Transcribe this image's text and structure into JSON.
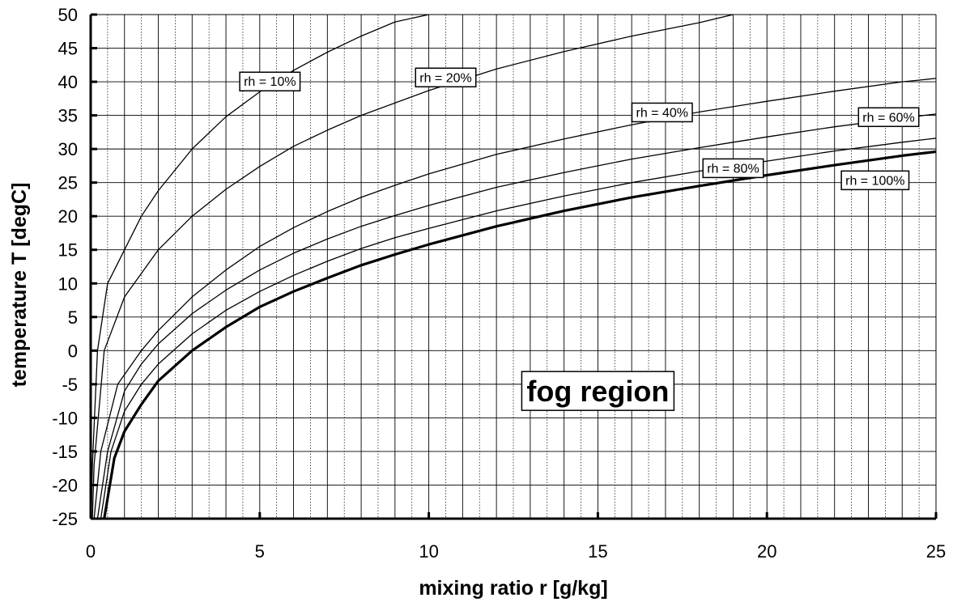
{
  "chart_data": {
    "type": "line",
    "xlabel": "mixing ratio r [g/kg]",
    "ylabel": "temperature T [degC]",
    "xlim": [
      0,
      25
    ],
    "ylim": [
      -25,
      50
    ],
    "x_ticks": [
      0,
      5,
      10,
      15,
      20,
      25
    ],
    "y_ticks": [
      -25,
      -20,
      -15,
      -10,
      -5,
      0,
      5,
      10,
      15,
      20,
      25,
      30,
      35,
      40,
      45,
      50
    ],
    "grid": true,
    "series": [
      {
        "name": "rh = 10%",
        "label_anchor": [
          5.3,
          40.1
        ],
        "points": [
          [
            0.02,
            -25
          ],
          [
            0.05,
            -17
          ],
          [
            0.2,
            0
          ],
          [
            0.5,
            10
          ],
          [
            1,
            15
          ],
          [
            1.5,
            20
          ],
          [
            2,
            23.8
          ],
          [
            3,
            30
          ],
          [
            4,
            34.8
          ],
          [
            5,
            38.5
          ],
          [
            6,
            41.7
          ],
          [
            7,
            44.4
          ],
          [
            8,
            46.8
          ],
          [
            9,
            48.9
          ],
          [
            10,
            50
          ]
        ]
      },
      {
        "name": "rh = 20%",
        "label_anchor": [
          10.5,
          40.7
        ],
        "points": [
          [
            0.05,
            -25
          ],
          [
            0.1,
            -17
          ],
          [
            0.4,
            0
          ],
          [
            1,
            8
          ],
          [
            2,
            15
          ],
          [
            3,
            20
          ],
          [
            4,
            24
          ],
          [
            5,
            27.4
          ],
          [
            6,
            30.4
          ],
          [
            7,
            32.8
          ],
          [
            8,
            35
          ],
          [
            10,
            38.7
          ],
          [
            12,
            41.9
          ],
          [
            14,
            44.5
          ],
          [
            16,
            46.8
          ],
          [
            18,
            48.8
          ],
          [
            19,
            50
          ]
        ]
      },
      {
        "name": "rh = 40%",
        "label_anchor": [
          16.9,
          35.5
        ],
        "points": [
          [
            0.1,
            -25
          ],
          [
            0.3,
            -15
          ],
          [
            0.8,
            -5
          ],
          [
            1.5,
            0
          ],
          [
            2,
            3
          ],
          [
            3,
            8
          ],
          [
            4,
            12
          ],
          [
            5,
            15.5
          ],
          [
            6,
            18.3
          ],
          [
            7,
            20.7
          ],
          [
            8,
            22.8
          ],
          [
            9,
            24.6
          ],
          [
            10,
            26.3
          ],
          [
            12,
            29.2
          ],
          [
            14,
            31.5
          ],
          [
            16,
            33.6
          ],
          [
            18,
            35.5
          ],
          [
            20,
            37.1
          ],
          [
            22,
            38.6
          ],
          [
            24,
            40
          ],
          [
            25,
            40.5
          ]
        ]
      },
      {
        "name": "rh = 60%",
        "label_anchor": [
          23.6,
          34.8
        ],
        "points": [
          [
            0.2,
            -25
          ],
          [
            0.5,
            -15
          ],
          [
            1,
            -6
          ],
          [
            1.5,
            -2
          ],
          [
            2,
            1
          ],
          [
            3,
            5.5
          ],
          [
            4,
            9
          ],
          [
            5,
            12
          ],
          [
            6,
            14.5
          ],
          [
            7,
            16.6
          ],
          [
            8,
            18.5
          ],
          [
            9,
            20.1
          ],
          [
            10,
            21.6
          ],
          [
            12,
            24.3
          ],
          [
            14,
            26.5
          ],
          [
            16,
            28.5
          ],
          [
            18,
            30.2
          ],
          [
            20,
            31.8
          ],
          [
            22,
            33.3
          ],
          [
            24,
            34.6
          ],
          [
            25,
            35.2
          ]
        ]
      },
      {
        "name": "rh = 80%",
        "label_anchor": [
          19,
          27.2
        ],
        "points": [
          [
            0.3,
            -25
          ],
          [
            0.6,
            -15
          ],
          [
            1,
            -9
          ],
          [
            1.5,
            -5
          ],
          [
            2,
            -2
          ],
          [
            3,
            2.5
          ],
          [
            4,
            6
          ],
          [
            5,
            8.8
          ],
          [
            6,
            11.2
          ],
          [
            7,
            13.3
          ],
          [
            8,
            15.2
          ],
          [
            9,
            16.8
          ],
          [
            10,
            18.2
          ],
          [
            12,
            20.8
          ],
          [
            14,
            23
          ],
          [
            16,
            25
          ],
          [
            18,
            26.7
          ],
          [
            20,
            28.2
          ],
          [
            22,
            29.7
          ],
          [
            24,
            31
          ],
          [
            25,
            31.6
          ]
        ]
      },
      {
        "name": "rh = 100%",
        "label_anchor": [
          23.2,
          25.4
        ],
        "points": [
          [
            0.4,
            -25
          ],
          [
            0.7,
            -16
          ],
          [
            1,
            -12
          ],
          [
            1.5,
            -8
          ],
          [
            2,
            -4.5
          ],
          [
            3,
            0
          ],
          [
            4,
            3.5
          ],
          [
            5,
            6.5
          ],
          [
            6,
            8.8
          ],
          [
            7,
            10.8
          ],
          [
            8,
            12.7
          ],
          [
            9,
            14.3
          ],
          [
            10,
            15.8
          ],
          [
            12,
            18.5
          ],
          [
            14,
            20.8
          ],
          [
            16,
            22.8
          ],
          [
            18,
            24.5
          ],
          [
            20,
            26.1
          ],
          [
            22,
            27.6
          ],
          [
            24,
            29
          ],
          [
            25,
            29.6
          ]
        ]
      }
    ],
    "annotations": [
      {
        "text": "fog region",
        "x": 15,
        "y": -6
      }
    ]
  }
}
